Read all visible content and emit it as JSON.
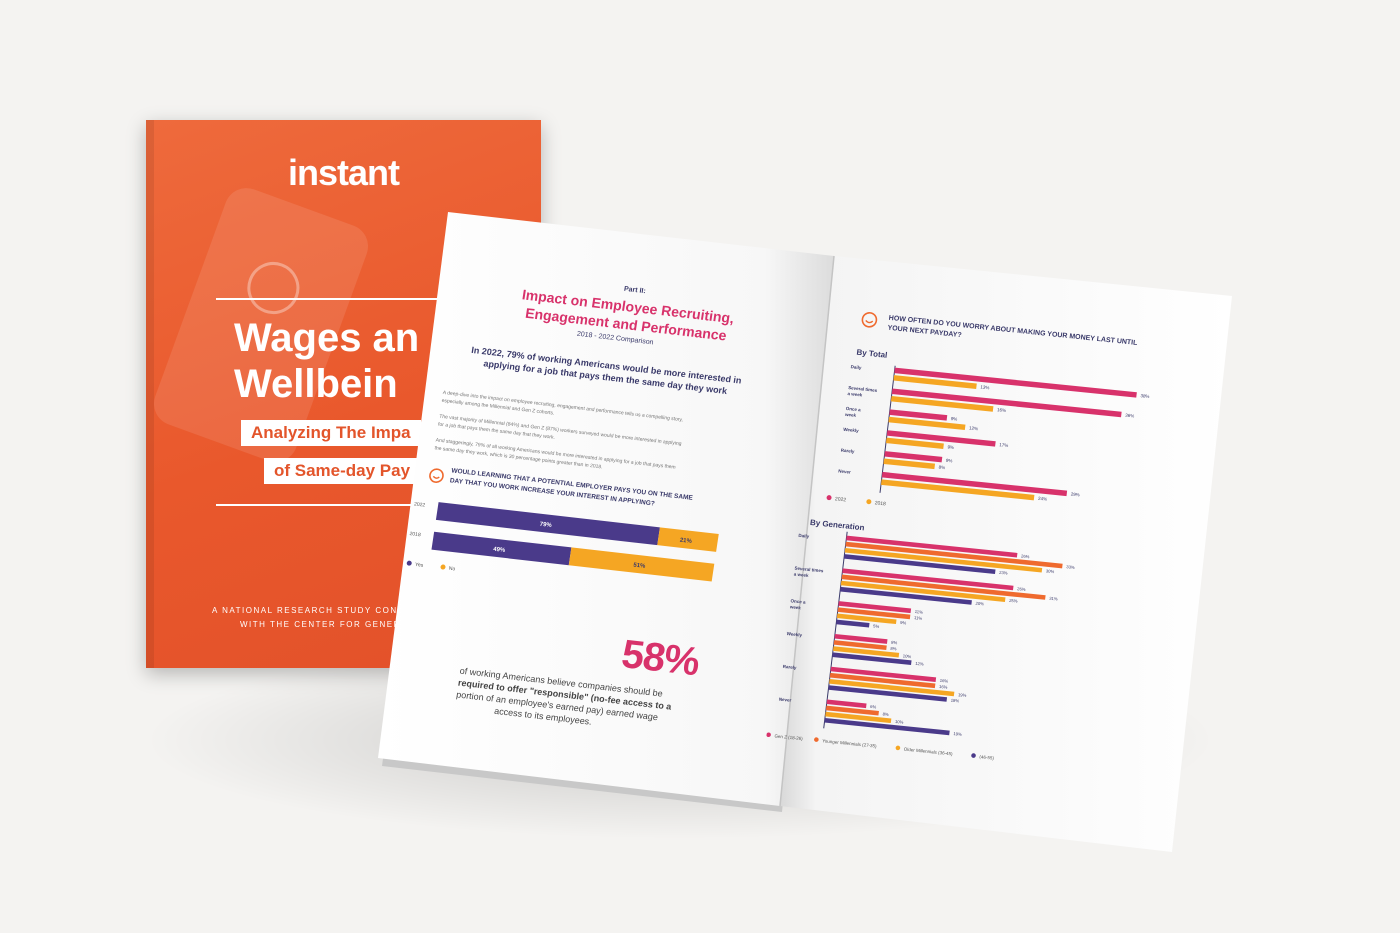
{
  "cover": {
    "logo": "instant",
    "title_line1": "Wages an",
    "title_line2": "Wellbein",
    "subtitle_line1": "Analyzing The Impa",
    "subtitle_line2": "of Same-day Pay",
    "footer_line1": "A NATIONAL RESEARCH STUDY CONDUCTE",
    "footer_line2": "WITH THE CENTER FOR GENERATIO"
  },
  "left_page": {
    "part": "Part II:",
    "heading_line1": "Impact on Employee Recruiting,",
    "heading_line2": "Engagement and Performance",
    "comparison": "2018 - 2022 Comparison",
    "lead_line1": "In 2022, 79% of working Americans would be more interested in",
    "lead_line2": "applying for a job that pays them the same day they work",
    "para1_line1": "A deep-dive into the impact on employee recruiting, engagement and performance tells us a compelling story,",
    "para1_line2": "especially among the Millennial and Gen Z cohorts.",
    "para2_line1": "The vast majority of Millennial (84%) and Gen Z (87%) workers surveyed would be more interested in applying",
    "para2_line2": "for a job that pays them the same day that they work.",
    "para3_line1": "And staggeringly, 79% of all working Americans would be more interested in applying for a job that pays them",
    "para3_line2": "the same day they work, which is 30 percentage points greater than in 2018.",
    "question_line1": "WOULD LEARNING THAT A POTENTIAL EMPLOYER PAYS YOU ON THE SAME",
    "question_line2": "DAY THAT YOU WORK INCREASE YOUR INTEREST IN APPLYING?",
    "stat": "58%",
    "stat_line1": "of working Americans believe companies should be",
    "stat_line2": "required to offer \"responsible\" (no-fee access to a",
    "stat_line3": "portion of an employee's earned pay) earned wage",
    "stat_line4": "access to its employees."
  },
  "right_page": {
    "question_line1": "HOW OFTEN DO YOU WORRY ABOUT MAKING YOUR MONEY LAST UNTIL",
    "question_line2": "YOUR NEXT PAYDAY?",
    "by_total": "By Total",
    "by_generation": "By Generation"
  },
  "colors": {
    "cover_orange": "#e9582c",
    "magenta": "#d8326b",
    "yellow": "#f5a623",
    "indigo": "#4a3a8a",
    "orange": "#ef6a2e"
  },
  "chart_data": [
    {
      "type": "bar",
      "orientation": "horizontal-stacked",
      "categories": [
        "2022",
        "2018"
      ],
      "series": [
        {
          "name": "Yes",
          "values": [
            79,
            49
          ],
          "value_labels": [
            "79%",
            "49%"
          ]
        },
        {
          "name": "No",
          "values": [
            21,
            51
          ],
          "value_labels": [
            "21%",
            "51%"
          ]
        }
      ]
    },
    {
      "type": "bar",
      "orientation": "horizontal",
      "title": "By Total",
      "categories": [
        "Daily",
        "Several times a week",
        "Once a week",
        "Weekly",
        "Rarely",
        "Never"
      ],
      "series": [
        {
          "name": "2022",
          "values": [
            38,
            36,
            9,
            17,
            9,
            29
          ],
          "value_labels": [
            "38%",
            "36%",
            "9%",
            "17%",
            "9%",
            "29%"
          ]
        },
        {
          "name": "2018",
          "values": [
            13,
            16,
            12,
            9,
            8,
            24
          ],
          "value_labels": [
            "13%",
            "16%",
            "12%",
            "9%",
            "8%",
            "24%"
          ]
        }
      ]
    },
    {
      "type": "bar",
      "orientation": "horizontal",
      "title": "By Generation",
      "categories": [
        "Daily",
        "Several times a week",
        "Once a week",
        "Weekly",
        "Rarely",
        "Never"
      ],
      "series": [
        {
          "name": "Gen Z (18-26)",
          "values": [
            26,
            26,
            11,
            8,
            16,
            6
          ]
        },
        {
          "name": "Younger Millennials (27-35)",
          "values": [
            33,
            31,
            11,
            8,
            16,
            8
          ]
        },
        {
          "name": "Older Millennials (36-45)",
          "values": [
            30,
            25,
            9,
            10,
            19,
            10
          ]
        },
        {
          "name": "(46-55)",
          "values": [
            23,
            20,
            5,
            12,
            18,
            19
          ]
        }
      ],
      "value_labels": [
        [
          "26%",
          "33%",
          "30%",
          "23%"
        ],
        [
          "26%",
          "31%",
          "25%",
          "20%"
        ],
        [
          "11%",
          "11%",
          "9%",
          "5%"
        ],
        [
          "8%",
          "8%",
          "10%",
          "12%"
        ],
        [
          "16%",
          "16%",
          "19%",
          "18%"
        ],
        [
          "6%",
          "8%",
          "10%",
          "19%"
        ]
      ]
    }
  ]
}
